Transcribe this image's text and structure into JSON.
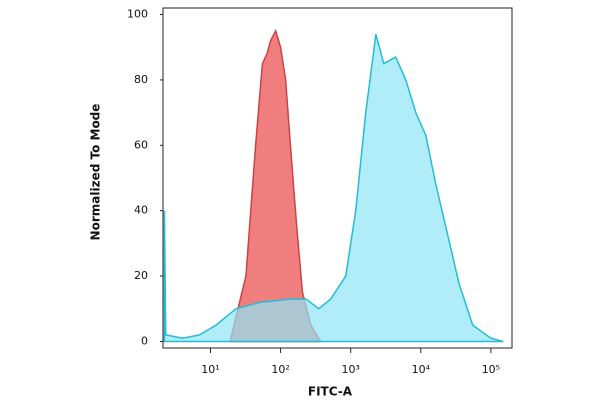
{
  "chart_data": {
    "type": "area",
    "xlabel": "FITC-A",
    "ylabel": "Normalized To Mode",
    "xscale": "log",
    "xlim": [
      2.1,
      200000
    ],
    "ylim": [
      -2,
      102
    ],
    "xticks": [
      {
        "value": 10,
        "label": "10¹"
      },
      {
        "value": 100,
        "label": "10²"
      },
      {
        "value": 1000,
        "label": "10³"
      },
      {
        "value": 10000,
        "label": "10⁴"
      },
      {
        "value": 100000,
        "label": "10⁵"
      }
    ],
    "yticks": [
      0,
      20,
      40,
      60,
      80,
      100
    ],
    "series": [
      {
        "color": "#f07070",
        "stroke": "#c94444",
        "x": [
          19,
          32,
          44,
          55,
          64,
          72,
          85,
          100,
          118,
          138,
          170,
          205,
          270,
          370
        ],
        "values": [
          0,
          20,
          60,
          85,
          88,
          92,
          95,
          90,
          80,
          60,
          35,
          15,
          5,
          0
        ]
      },
      {
        "color": "#8ee6f7",
        "stroke": "#25bcd6",
        "x": [
          2.2,
          2.3,
          4,
          7,
          12,
          23,
          52,
          140,
          230,
          350,
          520,
          850,
          1180,
          1640,
          2290,
          2960,
          4390,
          6110,
          8480,
          11800,
          16400,
          22800,
          34800,
          55000,
          100000,
          150000
        ],
        "values": [
          40,
          2,
          1,
          2,
          5,
          10,
          12,
          13,
          13,
          10,
          13,
          20,
          40,
          70,
          94,
          85,
          87,
          80,
          70,
          63,
          48,
          35,
          18,
          5,
          1,
          0
        ]
      }
    ]
  }
}
